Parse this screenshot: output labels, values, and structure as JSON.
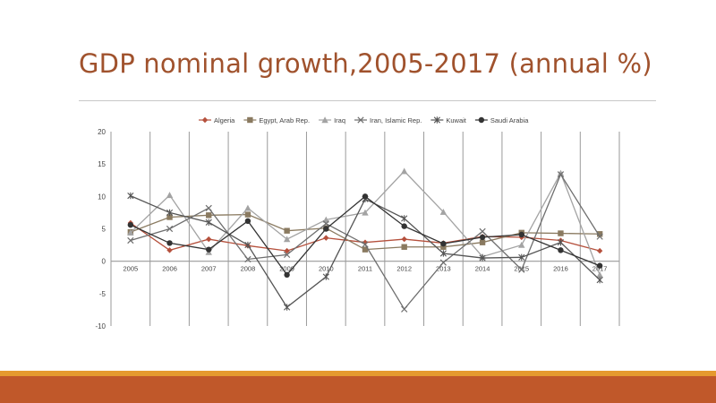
{
  "slide": {
    "title": "GDP nominal growth,2005-2017 (annual %)"
  },
  "chart_data": {
    "type": "line",
    "title": "",
    "xlabel": "",
    "ylabel": "",
    "ylim": [
      -10,
      20
    ],
    "yticks": [
      -10,
      -5,
      0,
      5,
      10,
      15,
      20
    ],
    "grid": "vertical",
    "legend_position": "top",
    "categories": [
      "2005",
      "2006",
      "2007",
      "2008",
      "2009",
      "2010",
      "2011",
      "2012",
      "2013",
      "2014",
      "2015",
      "2016",
      "2017"
    ],
    "series": [
      {
        "name": "Algeria",
        "marker": "diamond",
        "color": "#b5503c",
        "values": [
          5.9,
          1.7,
          3.4,
          2.4,
          1.6,
          3.6,
          2.9,
          3.4,
          2.8,
          3.8,
          3.7,
          3.2,
          1.6
        ]
      },
      {
        "name": "Egypt, Arab Rep.",
        "marker": "square",
        "color": "#8a7a60",
        "values": [
          4.5,
          6.8,
          7.1,
          7.2,
          4.7,
          5.1,
          1.8,
          2.2,
          2.2,
          2.9,
          4.4,
          4.3,
          4.2
        ]
      },
      {
        "name": "Iraq",
        "marker": "triangle",
        "color": "#a3a3a3",
        "values": [
          4.4,
          10.2,
          1.4,
          8.2,
          3.4,
          6.4,
          7.5,
          13.9,
          7.6,
          0.7,
          2.5,
          13.6,
          -2.1
        ]
      },
      {
        "name": "Iran, Islamic Rep.",
        "marker": "x",
        "color": "#6e6e6e",
        "values": [
          3.2,
          5.0,
          8.2,
          0.3,
          1.0,
          5.8,
          2.6,
          -7.4,
          -0.2,
          4.6,
          -1.3,
          13.4,
          3.8
        ]
      },
      {
        "name": "Kuwait",
        "marker": "star",
        "color": "#555555",
        "values": [
          10.1,
          7.5,
          6.0,
          2.5,
          -7.1,
          -2.4,
          9.6,
          6.6,
          1.2,
          0.5,
          0.6,
          2.9,
          -2.9
        ]
      },
      {
        "name": "Saudi Arabia",
        "marker": "circle",
        "color": "#333333",
        "values": [
          5.6,
          2.8,
          1.8,
          6.2,
          -2.1,
          5.0,
          10.0,
          5.4,
          2.7,
          3.7,
          4.1,
          1.7,
          -0.7
        ]
      }
    ]
  }
}
